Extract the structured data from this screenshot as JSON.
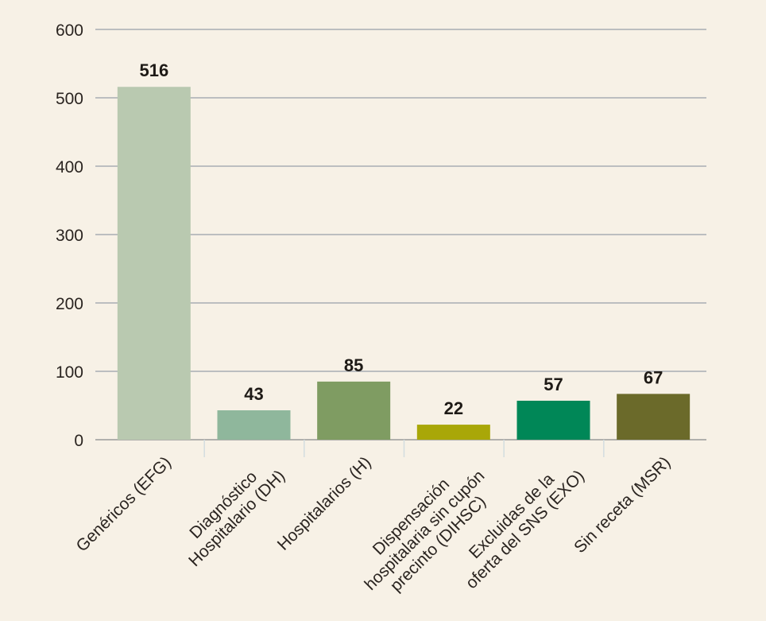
{
  "chart_data": {
    "type": "bar",
    "title": "",
    "xlabel": "",
    "ylabel": "",
    "ylim": [
      0,
      600
    ],
    "yticks": [
      0,
      100,
      200,
      300,
      400,
      500,
      600
    ],
    "grid": true,
    "categories": [
      "Genéricos (EFG)",
      "Diagnóstico\nHospitalario (DH)",
      "Hospitalarios (H)",
      "Dispensación\nhospitalaria sin cupón\nprecinto (DIHSC)",
      "Excluidas de la\noferta del SNS (EXO)",
      "Sin receta (MSR)"
    ],
    "values": [
      516,
      43,
      85,
      22,
      57,
      67
    ],
    "colors": [
      "#b9c9b0",
      "#8fb79c",
      "#7f9c62",
      "#a9a708",
      "#008757",
      "#6b6a2a"
    ]
  }
}
